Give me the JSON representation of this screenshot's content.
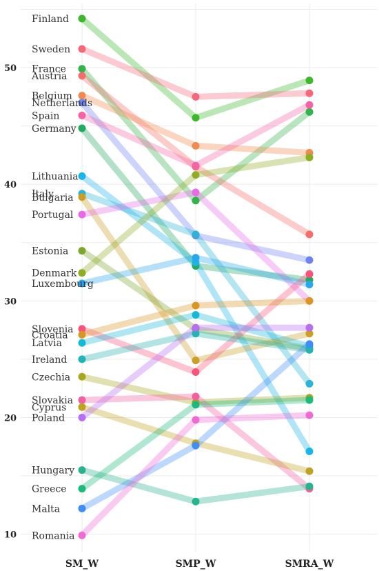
{
  "chart_data": {
    "type": "line",
    "categories": [
      "SM_W",
      "SMP_W",
      "SMRA_W"
    ],
    "ylim": [
      8.5,
      55.5
    ],
    "yticks": [
      10,
      20,
      30,
      40,
      50
    ],
    "grid": true,
    "legend": "labels at left of first column",
    "series": [
      {
        "name": "Finland",
        "color": "#3db82b",
        "values": [
          54.2,
          45.7,
          48.9
        ]
      },
      {
        "name": "Sweden",
        "color": "#f5687a",
        "values": [
          51.6,
          47.5,
          47.8
        ]
      },
      {
        "name": "France",
        "color": "#33b44a",
        "values": [
          49.9,
          38.6,
          46.2
        ]
      },
      {
        "name": "Austria",
        "color": "#f66e6a",
        "values": [
          49.3,
          41.5,
          35.7
        ]
      },
      {
        "name": "Belgium",
        "color": "#f08a4e",
        "values": [
          47.6,
          43.3,
          42.7
        ]
      },
      {
        "name": "Netherlands",
        "color": "#6f83f3",
        "values": [
          47.0,
          35.6,
          33.5
        ]
      },
      {
        "name": "Spain",
        "color": "#f363a6",
        "values": [
          45.9,
          41.6,
          46.8
        ]
      },
      {
        "name": "Germany",
        "color": "#22aa60",
        "values": [
          44.8,
          33.0,
          31.8
        ]
      },
      {
        "name": "Lithuania",
        "color": "#1db4e8",
        "values": [
          40.7,
          33.3,
          17.1
        ]
      },
      {
        "name": "Italy",
        "color": "#2bb4d7",
        "values": [
          39.2,
          35.7,
          22.9
        ]
      },
      {
        "name": "Bulgaria",
        "color": "#cc9e22",
        "values": [
          38.9,
          24.9,
          27.2
        ]
      },
      {
        "name": "Portugal",
        "color": "#e96ae8",
        "values": [
          37.4,
          39.3,
          30.0
        ]
      },
      {
        "name": "Estonia",
        "color": "#7ba72b",
        "values": [
          34.3,
          27.6,
          25.9
        ]
      },
      {
        "name": "Denmark",
        "color": "#8fad22",
        "values": [
          32.4,
          40.8,
          42.3
        ]
      },
      {
        "name": "Luxembourg",
        "color": "#27a8ee",
        "values": [
          31.5,
          33.7,
          31.4
        ]
      },
      {
        "name": "Slovenia",
        "color": "#f8537b",
        "values": [
          27.6,
          23.9,
          32.3
        ]
      },
      {
        "name": "Croatia",
        "color": "#d99624",
        "values": [
          27.1,
          29.6,
          30.0
        ]
      },
      {
        "name": "Latvia",
        "color": "#16b8d8",
        "values": [
          26.4,
          28.8,
          26.1
        ]
      },
      {
        "name": "Ireland",
        "color": "#22b3b3",
        "values": [
          25.0,
          27.2,
          25.8
        ]
      },
      {
        "name": "Czechia",
        "color": "#a6a71f",
        "values": [
          23.5,
          21.3,
          21.7
        ]
      },
      {
        "name": "Slovakia",
        "color": "#f35fa0",
        "values": [
          21.5,
          21.8,
          13.9
        ]
      },
      {
        "name": "Cyprus",
        "color": "#bfa320",
        "values": [
          20.9,
          17.8,
          15.4
        ]
      },
      {
        "name": "Poland",
        "color": "#b66ef2",
        "values": [
          20.0,
          27.7,
          27.7
        ]
      },
      {
        "name": "Hungary",
        "color": "#27b38c",
        "values": [
          15.5,
          12.8,
          14.1
        ]
      },
      {
        "name": "Greece",
        "color": "#19ba7b",
        "values": [
          13.9,
          21.1,
          21.5
        ]
      },
      {
        "name": "Malta",
        "color": "#3f8ef5",
        "values": [
          12.2,
          17.6,
          26.3
        ]
      },
      {
        "name": "Romania",
        "color": "#f06ad6",
        "values": [
          9.9,
          19.8,
          20.2
        ]
      }
    ]
  }
}
